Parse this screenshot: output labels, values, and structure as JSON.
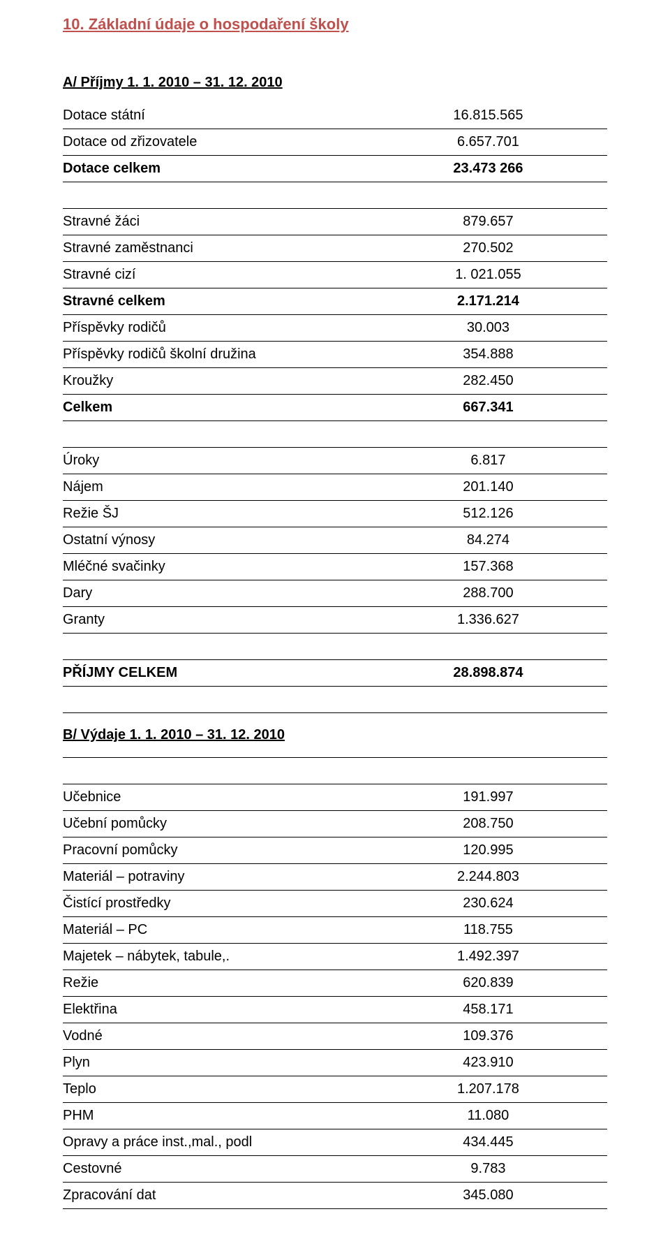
{
  "heading": "10. Základní údaje o hospodaření školy",
  "sectionA": {
    "title": "A/ Příjmy   1. 1. 2010 – 31. 12. 2010",
    "group1": [
      {
        "label": "Dotace státní",
        "value": "16.815.565"
      },
      {
        "label": "Dotace od zřizovatele",
        "value": "6.657.701"
      },
      {
        "label": "Dotace celkem",
        "value": "23.473 266",
        "bold": true
      }
    ],
    "group2": [
      {
        "label": "Stravné žáci",
        "value": "879.657"
      },
      {
        "label": "Stravné zaměstnanci",
        "value": "270.502"
      },
      {
        "label": "Stravné cizí",
        "value": "1. 021.055"
      },
      {
        "label": "Stravné celkem",
        "value": "2.171.214",
        "bold": true
      },
      {
        "label": "Příspěvky rodičů",
        "value": "30.003"
      },
      {
        "label": "Příspěvky rodičů školní družina",
        "value": "354.888"
      },
      {
        "label": "Kroužky",
        "value": "282.450"
      },
      {
        "label": "Celkem",
        "value": "667.341",
        "bold": true
      }
    ],
    "group3": [
      {
        "label": "Úroky",
        "value": "6.817"
      },
      {
        "label": "Nájem",
        "value": "201.140"
      },
      {
        "label": "Režie ŠJ",
        "value": "512.126"
      },
      {
        "label": "Ostatní výnosy",
        "value": "84.274"
      },
      {
        "label": "Mléčné svačinky",
        "value": "157.368"
      },
      {
        "label": "Dary",
        "value": "288.700"
      },
      {
        "label": "Granty",
        "value": "1.336.627"
      }
    ],
    "total": {
      "label": "PŘÍJMY CELKEM",
      "value": "28.898.874"
    }
  },
  "sectionB": {
    "title": "B/ Výdaje    1. 1. 2010 – 31. 12. 2010",
    "rows": [
      {
        "label": "Učebnice",
        "value": "191.997"
      },
      {
        "label": "Učební pomůcky",
        "value": "208.750"
      },
      {
        "label": "Pracovní pomůcky",
        "value": "120.995"
      },
      {
        "label": "Materiál – potraviny",
        "value": "2.244.803"
      },
      {
        "label": "Čistící prostředky",
        "value": "230.624"
      },
      {
        "label": "Materiál – PC",
        "value": "118.755"
      },
      {
        "label": "Majetek – nábytek, tabule,.",
        "value": "1.492.397"
      },
      {
        "label": "Režie",
        "value": "620.839"
      },
      {
        "label": "Elektřina",
        "value": "458.171"
      },
      {
        "label": "Vodné",
        "value": "109.376"
      },
      {
        "label": "Plyn",
        "value": "423.910"
      },
      {
        "label": "Teplo",
        "value": "1.207.178"
      },
      {
        "label": "PHM",
        "value": "11.080"
      },
      {
        "label": "Opravy a práce inst.,mal., podl",
        "value": "434.445"
      },
      {
        "label": "Cestovné",
        "value": "9.783"
      },
      {
        "label": "Zpracování dat",
        "value": "345.080"
      }
    ]
  }
}
